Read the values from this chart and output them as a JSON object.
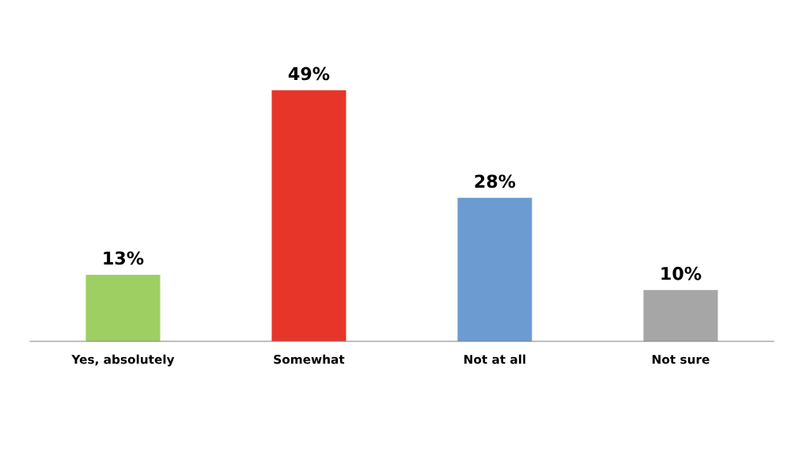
{
  "chart_data": {
    "type": "bar",
    "categories": [
      "Yes, absolutely",
      "Somewhat",
      "Not at all",
      "Not sure"
    ],
    "values": [
      13,
      49,
      28,
      10
    ],
    "colors": [
      "#9dcf62",
      "#e8352a",
      "#6b9bd0",
      "#a6a6a6"
    ],
    "value_labels": [
      "13%",
      "49%",
      "28%",
      "10%"
    ],
    "grid": false,
    "legend": false
  }
}
